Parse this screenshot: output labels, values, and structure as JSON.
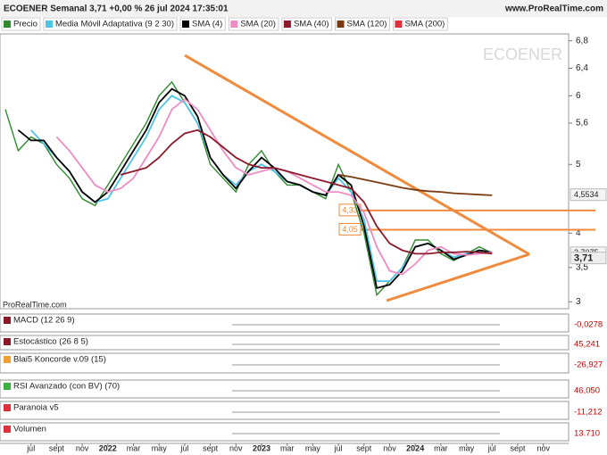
{
  "header": {
    "title": "ECOENER Semanal 3,71 +0,00 % 26 jul 2024 17:35:01",
    "site": "www.ProRealTime.com"
  },
  "chart_data": {
    "type": "line",
    "watermark": "ECOENER",
    "credit": "ProRealTime.com",
    "categories": [
      null,
      null,
      "jul",
      null,
      "sept",
      null,
      "nov",
      null,
      "2022",
      null,
      "mar",
      null,
      "may",
      null,
      "jul",
      null,
      "sept",
      null,
      "nov",
      null,
      "2023",
      null,
      "mar",
      null,
      "may",
      null,
      "jul",
      null,
      "sept",
      null,
      "nov",
      null,
      "2024",
      null,
      "mar",
      null,
      "may",
      null,
      "jul",
      null,
      "sept",
      null,
      "nov"
    ],
    "ylim": [
      2.9,
      6.9
    ],
    "yticks": [
      3,
      {
        "value": 3.5,
        "label": "3,5"
      },
      4,
      5,
      {
        "value": 5.6,
        "label": "5,6"
      },
      6,
      {
        "value": 6.4,
        "label": "6,4"
      },
      {
        "value": 6.8,
        "label": "6,8"
      }
    ],
    "series": [
      {
        "name": "Precio",
        "color": "#2e8b2e",
        "values": [
          5.8,
          5.2,
          5.4,
          5.3,
          5.0,
          4.8,
          4.5,
          4.4,
          4.7,
          5.0,
          5.3,
          5.6,
          6.0,
          6.2,
          5.9,
          5.6,
          5.0,
          4.8,
          4.6,
          5.0,
          5.2,
          4.9,
          4.7,
          4.7,
          4.6,
          4.5,
          5.0,
          4.6,
          4.0,
          3.1,
          3.3,
          3.5,
          3.9,
          3.9,
          3.7,
          3.6,
          3.7,
          3.8,
          3.71,
          null,
          null,
          null,
          null
        ]
      },
      {
        "name": "Media Móvil Adaptativa (9 2 30)",
        "color": "#4cc4e6",
        "values": [
          null,
          null,
          5.5,
          5.3,
          5.1,
          4.9,
          4.6,
          4.45,
          4.5,
          4.8,
          5.1,
          5.4,
          5.8,
          6.0,
          5.9,
          5.6,
          5.1,
          4.85,
          4.7,
          4.9,
          5.0,
          4.9,
          4.75,
          4.7,
          4.6,
          4.55,
          4.8,
          4.6,
          4.2,
          3.3,
          3.3,
          3.5,
          3.8,
          3.85,
          3.75,
          3.65,
          3.7,
          3.75,
          3.72,
          null,
          null,
          null,
          null
        ]
      },
      {
        "name": "SMA (4)",
        "color": "#000000",
        "values": [
          null,
          5.5,
          5.35,
          5.35,
          5.1,
          4.9,
          4.6,
          4.45,
          4.6,
          4.9,
          5.2,
          5.5,
          5.9,
          6.1,
          6.0,
          5.7,
          5.1,
          4.85,
          4.65,
          4.9,
          5.1,
          4.95,
          4.75,
          4.7,
          4.6,
          4.55,
          4.85,
          4.7,
          4.1,
          3.2,
          3.25,
          3.45,
          3.8,
          3.85,
          3.75,
          3.62,
          3.68,
          3.75,
          3.72,
          null,
          null,
          null,
          null
        ]
      },
      {
        "name": "SMA (20)",
        "color": "#f08cc4",
        "values": [
          null,
          null,
          null,
          null,
          5.4,
          5.2,
          4.95,
          4.7,
          4.6,
          4.65,
          4.8,
          5.1,
          5.4,
          5.8,
          5.95,
          5.8,
          5.5,
          5.2,
          4.95,
          4.85,
          4.9,
          4.95,
          4.9,
          4.8,
          4.7,
          4.6,
          4.6,
          4.55,
          4.3,
          3.8,
          3.45,
          3.4,
          3.55,
          3.75,
          3.8,
          3.7,
          3.68,
          3.7,
          3.72,
          null,
          null,
          null,
          null
        ]
      },
      {
        "name": "SMA (40)",
        "color": "#8b1a2b",
        "values": [
          null,
          null,
          null,
          null,
          null,
          null,
          null,
          null,
          null,
          4.85,
          4.9,
          4.95,
          5.1,
          5.3,
          5.45,
          5.5,
          5.4,
          5.25,
          5.1,
          5.0,
          4.95,
          4.95,
          4.9,
          4.85,
          4.8,
          4.75,
          4.7,
          4.65,
          4.45,
          4.1,
          3.85,
          3.75,
          3.7,
          3.7,
          3.72,
          3.72,
          3.73,
          3.72,
          3.7,
          null,
          null,
          null,
          null
        ]
      },
      {
        "name": "SMA (120)",
        "color": "#7a3b10",
        "values": [
          null,
          null,
          null,
          null,
          null,
          null,
          null,
          null,
          null,
          null,
          null,
          null,
          null,
          null,
          null,
          null,
          null,
          null,
          null,
          null,
          null,
          null,
          null,
          null,
          null,
          null,
          4.85,
          4.82,
          4.78,
          4.74,
          4.7,
          4.66,
          4.63,
          4.61,
          4.6,
          4.58,
          4.57,
          4.56,
          4.55,
          null,
          null,
          null,
          null
        ]
      },
      {
        "name": "SMA (200)",
        "color": "#e0303a",
        "values": [
          null,
          null,
          null,
          null,
          null,
          null,
          null,
          null,
          null,
          null,
          null,
          null,
          null,
          null,
          null,
          null,
          null,
          null,
          null,
          null,
          null,
          null,
          null,
          null,
          null,
          null,
          null,
          null,
          null,
          null,
          null,
          null,
          null,
          null,
          null,
          null,
          null,
          null,
          null,
          null,
          null,
          null,
          null
        ]
      }
    ],
    "levels": [
      {
        "value": 4.33,
        "label": "4,33",
        "color": "#f08a3c"
      },
      {
        "value": 4.05,
        "label": "4,05",
        "color": "#f08a3c"
      }
    ],
    "price_labels": [
      {
        "value": 4.5534,
        "label": "4,5534"
      },
      {
        "value": 3.7075,
        "label": "3,7075"
      },
      {
        "value": 3.71,
        "label": "3,71"
      }
    ]
  },
  "indicator_panels": [
    {
      "title": "MACD (12 26 9)",
      "last_label": "-0,0278"
    },
    {
      "title": "Estocástico (26 8 5)",
      "last_label": "45,241"
    },
    {
      "title": "Blai5 Koncorde v.09 (15)",
      "last_label": "-26,927"
    },
    {
      "title": "RSI Avanzado (con BV) (70)",
      "last_label": "46,050"
    },
    {
      "title": "Paranoia v5",
      "last_label": "-11,212"
    },
    {
      "title": "Volumen",
      "last_label": "13.710"
    }
  ]
}
